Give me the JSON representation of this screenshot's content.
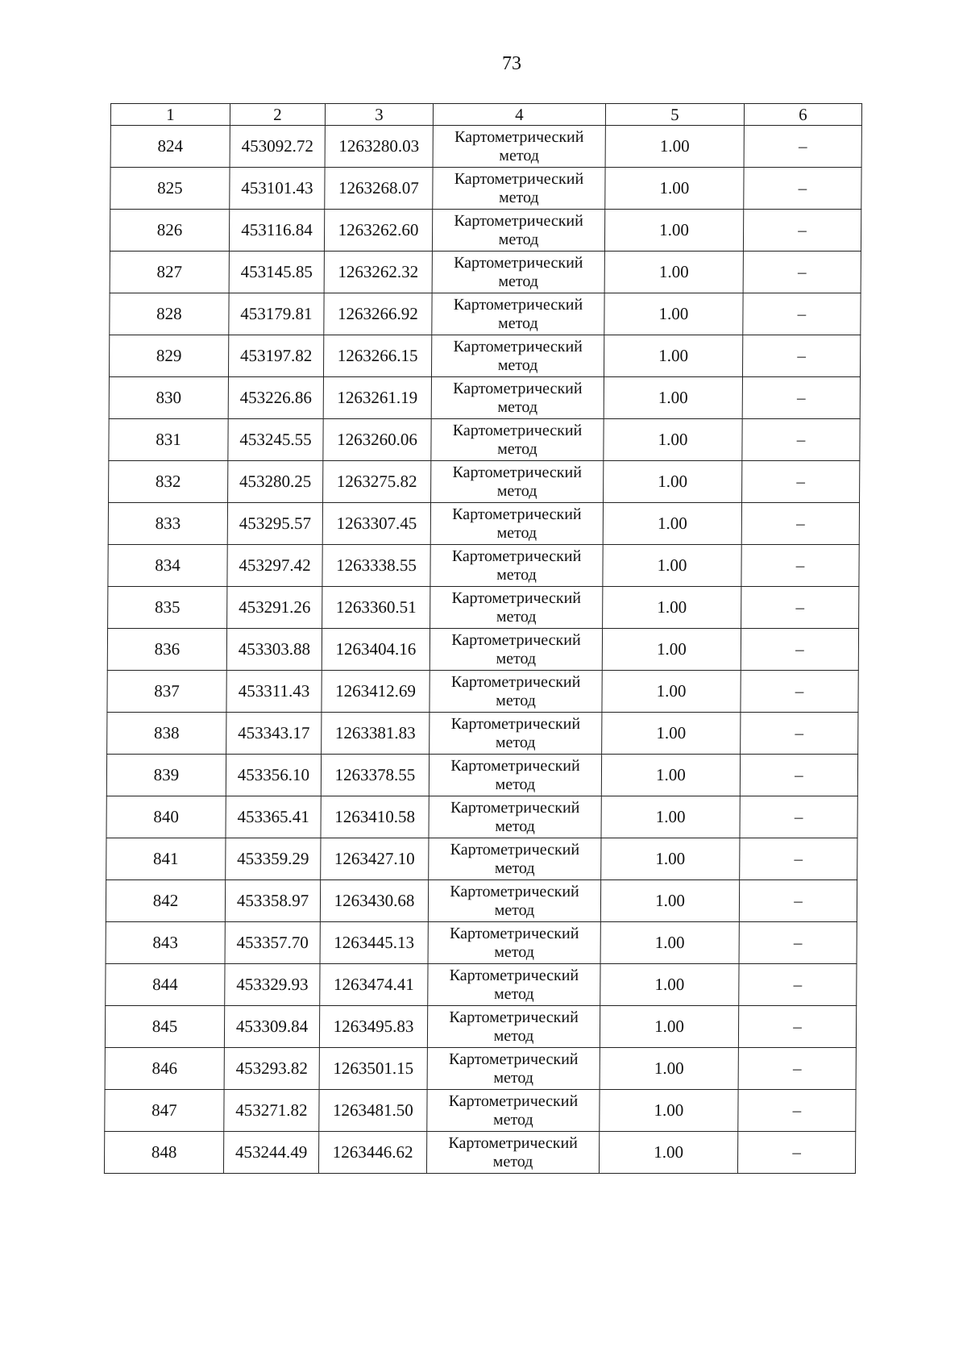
{
  "page_number": "73",
  "table": {
    "headers": [
      "1",
      "2",
      "3",
      "4",
      "5",
      "6"
    ],
    "rows": [
      [
        "824",
        "453092.72",
        "1263280.03",
        "Картометрический метод",
        "1.00",
        "–"
      ],
      [
        "825",
        "453101.43",
        "1263268.07",
        "Картометрический метод",
        "1.00",
        "–"
      ],
      [
        "826",
        "453116.84",
        "1263262.60",
        "Картометрический метод",
        "1.00",
        "–"
      ],
      [
        "827",
        "453145.85",
        "1263262.32",
        "Картометрический метод",
        "1.00",
        "–"
      ],
      [
        "828",
        "453179.81",
        "1263266.92",
        "Картометрический метод",
        "1.00",
        "–"
      ],
      [
        "829",
        "453197.82",
        "1263266.15",
        "Картометрический метод",
        "1.00",
        "–"
      ],
      [
        "830",
        "453226.86",
        "1263261.19",
        "Картометрический метод",
        "1.00",
        "–"
      ],
      [
        "831",
        "453245.55",
        "1263260.06",
        "Картометрический метод",
        "1.00",
        "–"
      ],
      [
        "832",
        "453280.25",
        "1263275.82",
        "Картометрический метод",
        "1.00",
        "–"
      ],
      [
        "833",
        "453295.57",
        "1263307.45",
        "Картометрический метод",
        "1.00",
        "–"
      ],
      [
        "834",
        "453297.42",
        "1263338.55",
        "Картометрический метод",
        "1.00",
        "–"
      ],
      [
        "835",
        "453291.26",
        "1263360.51",
        "Картометрический метод",
        "1.00",
        "–"
      ],
      [
        "836",
        "453303.88",
        "1263404.16",
        "Картометрический метод",
        "1.00",
        "–"
      ],
      [
        "837",
        "453311.43",
        "1263412.69",
        "Картометрический метод",
        "1.00",
        "–"
      ],
      [
        "838",
        "453343.17",
        "1263381.83",
        "Картометрический метод",
        "1.00",
        "–"
      ],
      [
        "839",
        "453356.10",
        "1263378.55",
        "Картометрический метод",
        "1.00",
        "–"
      ],
      [
        "840",
        "453365.41",
        "1263410.58",
        "Картометрический метод",
        "1.00",
        "–"
      ],
      [
        "841",
        "453359.29",
        "1263427.10",
        "Картометрический метод",
        "1.00",
        "–"
      ],
      [
        "842",
        "453358.97",
        "1263430.68",
        "Картометрический метод",
        "1.00",
        "–"
      ],
      [
        "843",
        "453357.70",
        "1263445.13",
        "Картометрический метод",
        "1.00",
        "–"
      ],
      [
        "844",
        "453329.93",
        "1263474.41",
        "Картометрический метод",
        "1.00",
        "–"
      ],
      [
        "845",
        "453309.84",
        "1263495.83",
        "Картометрический метод",
        "1.00",
        "–"
      ],
      [
        "846",
        "453293.82",
        "1263501.15",
        "Картометрический метод",
        "1.00",
        "–"
      ],
      [
        "847",
        "453271.82",
        "1263481.50",
        "Картометрический метод",
        "1.00",
        "–"
      ],
      [
        "848",
        "453244.49",
        "1263446.62",
        "Картометрический метод",
        "1.00",
        "–"
      ]
    ]
  }
}
